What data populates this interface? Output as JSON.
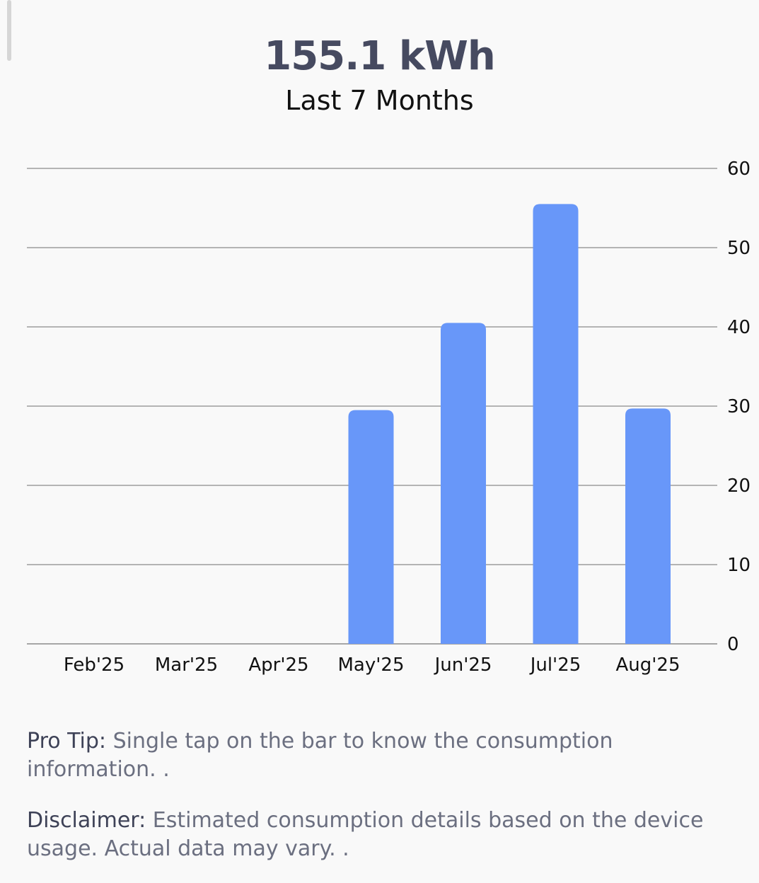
{
  "summary": {
    "total": "155.1 kWh",
    "period": "Last 7 Months"
  },
  "chart_data": {
    "type": "bar",
    "categories": [
      "Feb'25",
      "Mar'25",
      "Apr'25",
      "May'25",
      "Jun'25",
      "Jul'25",
      "Aug'25"
    ],
    "values": [
      0,
      0,
      0,
      29.5,
      40.5,
      55.5,
      29.7
    ],
    "ylim": [
      0,
      60
    ],
    "yticks": [
      0,
      10,
      20,
      30,
      40,
      50,
      60
    ],
    "y_axis_position": "right",
    "grid": true,
    "bar_color": "#6897f9",
    "grid_color": "#8a8a8a"
  },
  "notes": {
    "pro_tip_label": "Pro Tip:",
    "pro_tip_text": " Single tap on the bar to know the consumption information. .",
    "disclaimer_label": "Disclaimer:",
    "disclaimer_text": " Estimated consumption details based on the device usage. Actual data may vary. ."
  }
}
